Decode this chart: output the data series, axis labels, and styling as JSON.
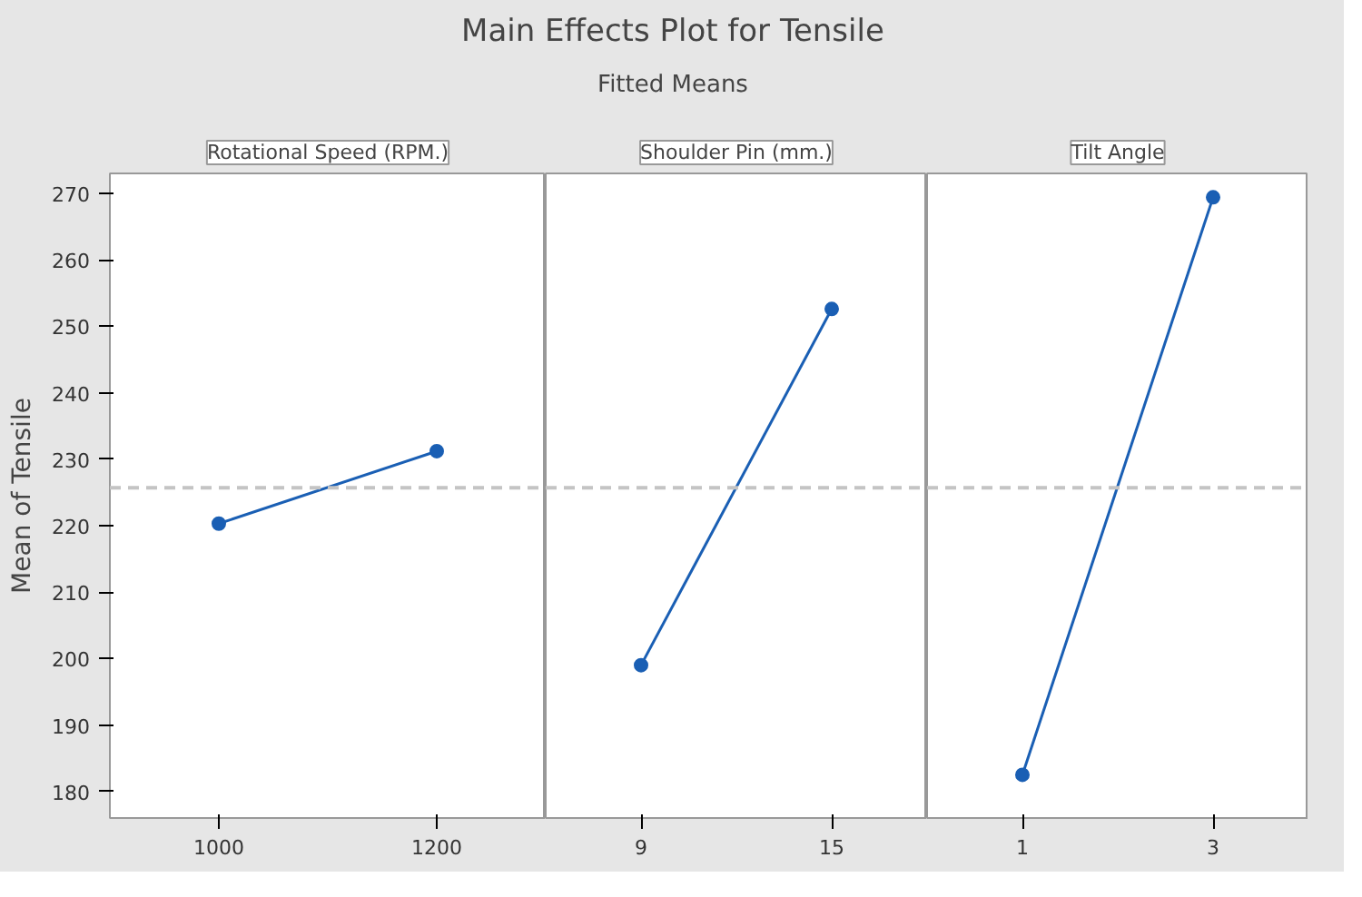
{
  "chart_data": [
    {
      "type": "other",
      "title": "Main Effects Plot for Tensile",
      "subtitle": "Fitted Means"
    },
    {
      "type": "line",
      "title": "Rotational Speed (RPM.)",
      "ylabel": "Mean of Tensile",
      "categories": [
        "1000",
        "1200"
      ],
      "series": [
        {
          "color": "#1a5fb4",
          "values": [
            220.3,
            231.2
          ]
        }
      ],
      "ylim": [
        176,
        273
      ],
      "yticks": [
        180,
        190,
        200,
        210,
        220,
        230,
        240,
        250,
        260,
        270
      ],
      "marker": "circle",
      "line_style": "solid",
      "grid": false,
      "ref_lines": [
        {
          "axis": "y",
          "value": 225.7,
          "color": "#c4c4c4",
          "line_style": "dashed"
        }
      ]
    },
    {
      "type": "line",
      "title": "Shoulder Pin (mm.)",
      "categories": [
        "9",
        "15"
      ],
      "series": [
        {
          "color": "#1a5fb4",
          "values": [
            199.0,
            252.6
          ]
        }
      ],
      "ylim": [
        176,
        273
      ],
      "yticks": [
        180,
        190,
        200,
        210,
        220,
        230,
        240,
        250,
        260,
        270
      ],
      "marker": "circle",
      "line_style": "solid",
      "grid": false,
      "tick_labels": "x",
      "ref_lines": [
        {
          "axis": "y",
          "value": 225.7,
          "color": "#c4c4c4",
          "line_style": "dashed"
        }
      ]
    },
    {
      "type": "line",
      "title": "Tilt Angle",
      "categories": [
        "1",
        "3"
      ],
      "series": [
        {
          "color": "#1a5fb4",
          "values": [
            182.5,
            269.4
          ]
        }
      ],
      "ylim": [
        176,
        273
      ],
      "yticks": [
        180,
        190,
        200,
        210,
        220,
        230,
        240,
        250,
        260,
        270
      ],
      "marker": "circle",
      "line_style": "solid",
      "grid": false,
      "tick_labels": "x",
      "ref_lines": [
        {
          "axis": "y",
          "value": 225.7,
          "color": "#c4c4c4",
          "line_style": "dashed"
        }
      ]
    }
  ]
}
